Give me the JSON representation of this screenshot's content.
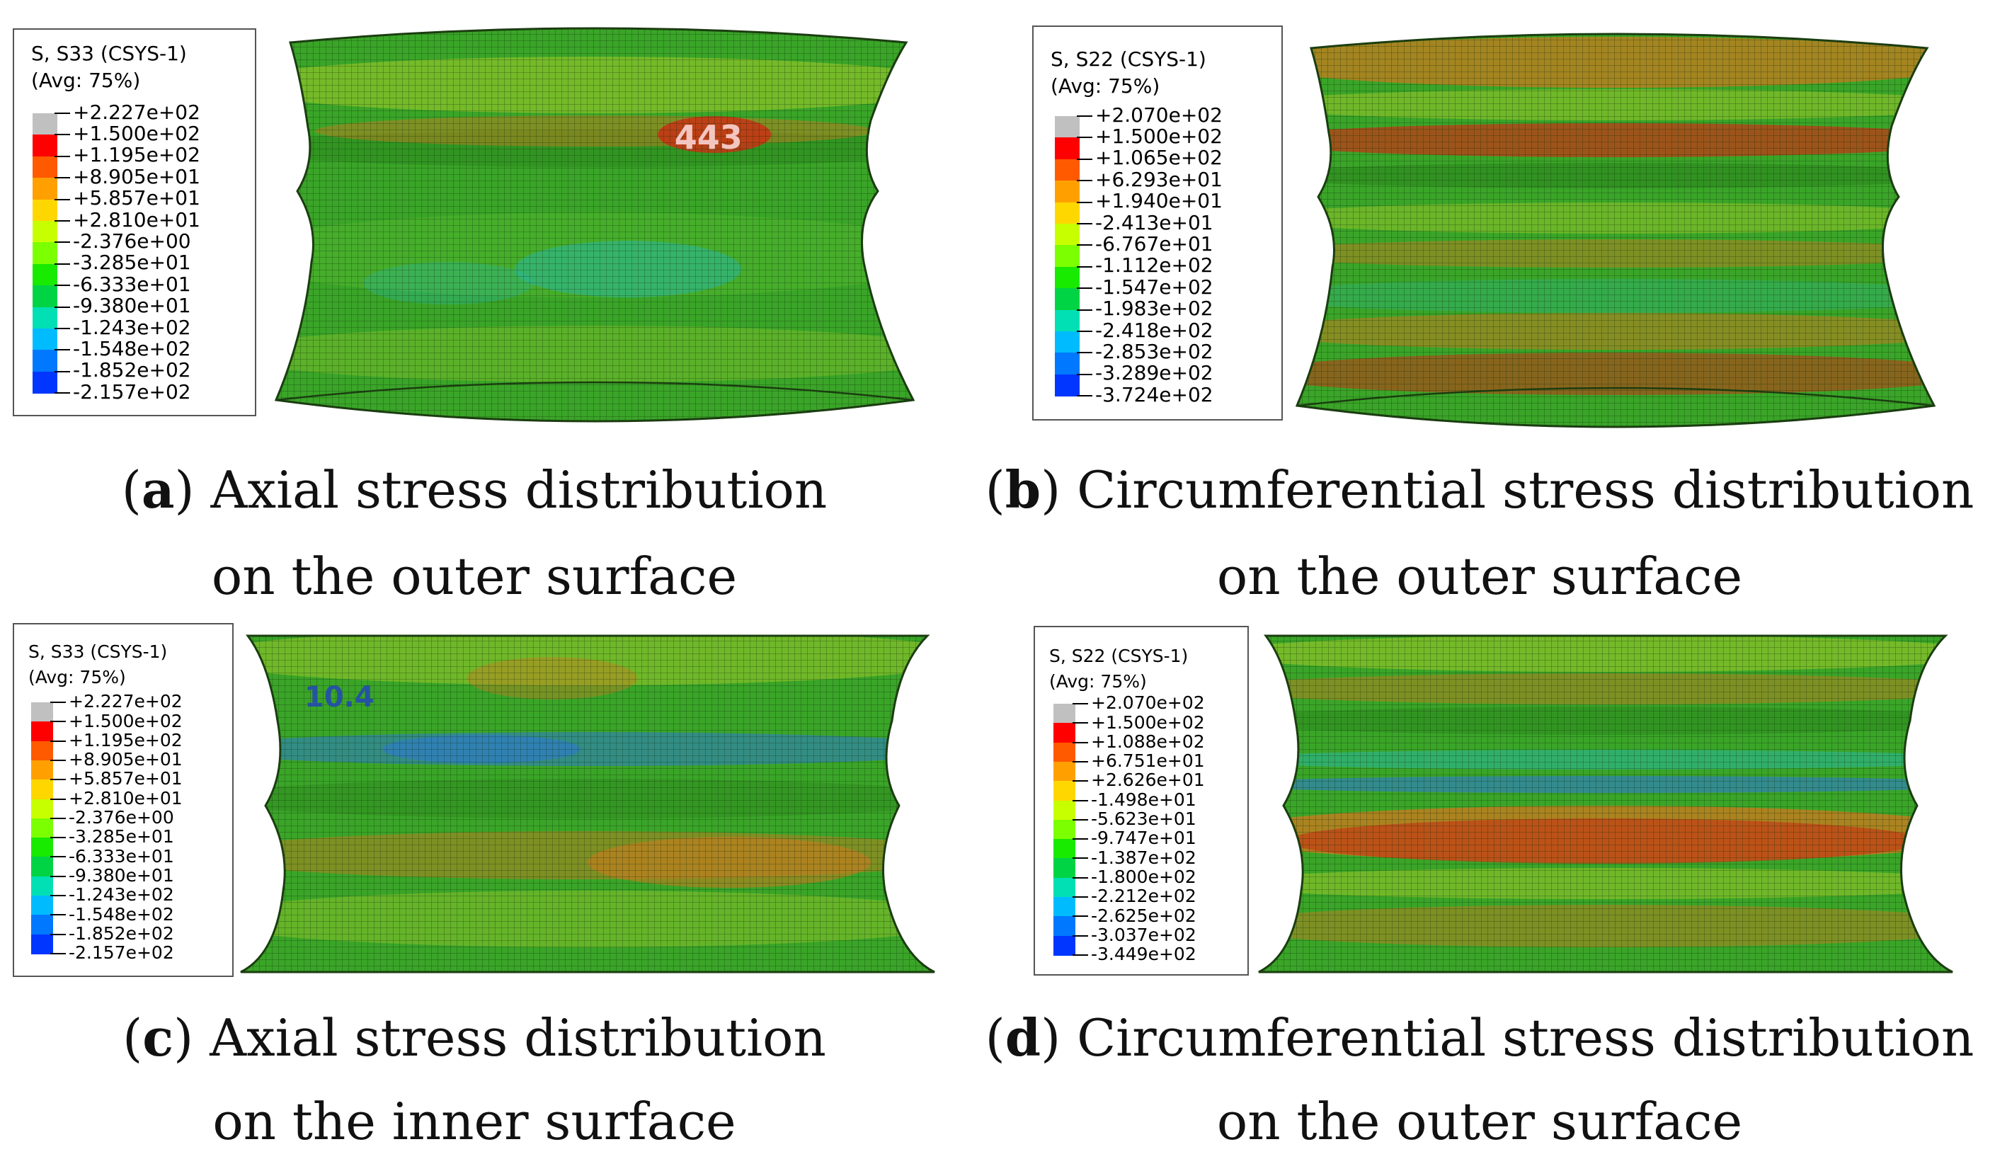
{
  "panels": [
    {
      "id": "a",
      "legend": {
        "title1": "S, S33 (CSYS-1)",
        "title2": "(Avg: 75%)",
        "values": [
          "+2.227e+02",
          "+1.500e+02",
          "+1.195e+02",
          "+8.905e+01",
          "+5.857e+01",
          "+2.810e+01",
          "-2.376e+00",
          "-3.285e+01",
          "-6.333e+01",
          "-9.380e+01",
          "-1.243e+02",
          "-1.548e+02",
          "-1.852e+02",
          "-2.157e+02"
        ]
      },
      "annotation": "443",
      "caption": {
        "tag": "a",
        "line1": "Axial stress distribution",
        "line2": "on the outer surface"
      }
    },
    {
      "id": "b",
      "legend": {
        "title1": "S, S22 (CSYS-1)",
        "title2": "(Avg: 75%)",
        "values": [
          "+2.070e+02",
          "+1.500e+02",
          "+1.065e+02",
          "+6.293e+01",
          "+1.940e+01",
          "-2.413e+01",
          "-6.767e+01",
          "-1.112e+02",
          "-1.547e+02",
          "-1.983e+02",
          "-2.418e+02",
          "-2.853e+02",
          "-3.289e+02",
          "-3.724e+02"
        ]
      },
      "caption": {
        "tag": "b",
        "line1": "Circumferential stress distribution",
        "line2": "on the outer surface"
      }
    },
    {
      "id": "c",
      "legend": {
        "title1": "S, S33 (CSYS-1)",
        "title2": "(Avg: 75%)",
        "values": [
          "+2.227e+02",
          "+1.500e+02",
          "+1.195e+02",
          "+8.905e+01",
          "+5.857e+01",
          "+2.810e+01",
          "-2.376e+00",
          "-3.285e+01",
          "-6.333e+01",
          "-9.380e+01",
          "-1.243e+02",
          "-1.548e+02",
          "-1.852e+02",
          "-2.157e+02"
        ]
      },
      "annotation": "10.4",
      "caption": {
        "tag": "c",
        "line1": "Axial stress distribution",
        "line2": "on the inner surface"
      }
    },
    {
      "id": "d",
      "legend": {
        "title1": "S, S22 (CSYS-1)",
        "title2": "(Avg: 75%)",
        "values": [
          "+2.070e+02",
          "+1.500e+02",
          "+1.088e+02",
          "+6.751e+01",
          "+2.626e+01",
          "-1.498e+01",
          "-5.623e+01",
          "-9.747e+01",
          "-1.387e+02",
          "-1.800e+02",
          "-2.212e+02",
          "-2.625e+02",
          "-3.037e+02",
          "-3.449e+02"
        ]
      },
      "caption": {
        "tag": "d",
        "line1": "Circumferential stress distribution",
        "line2": "on the outer surface"
      }
    }
  ],
  "contour_colors": [
    "#c0c0c0",
    "#ff0000",
    "#ff5a00",
    "#ffa000",
    "#ffd700",
    "#c8ff00",
    "#7cff00",
    "#18ea00",
    "#00d444",
    "#00e0b4",
    "#00bcff",
    "#0078ff",
    "#0036ff",
    "#0000ff"
  ],
  "field_colors": {
    "green": "#3aa528",
    "dark_green": "#2d8a1e",
    "light_green": "#5fc030",
    "yellow_green": "#9cc82a",
    "orange": "#d2781e",
    "red": "#c83214",
    "cyan": "#2ab8a0",
    "blue": "#2e7ad0",
    "mesh": "#0f2a0a"
  }
}
